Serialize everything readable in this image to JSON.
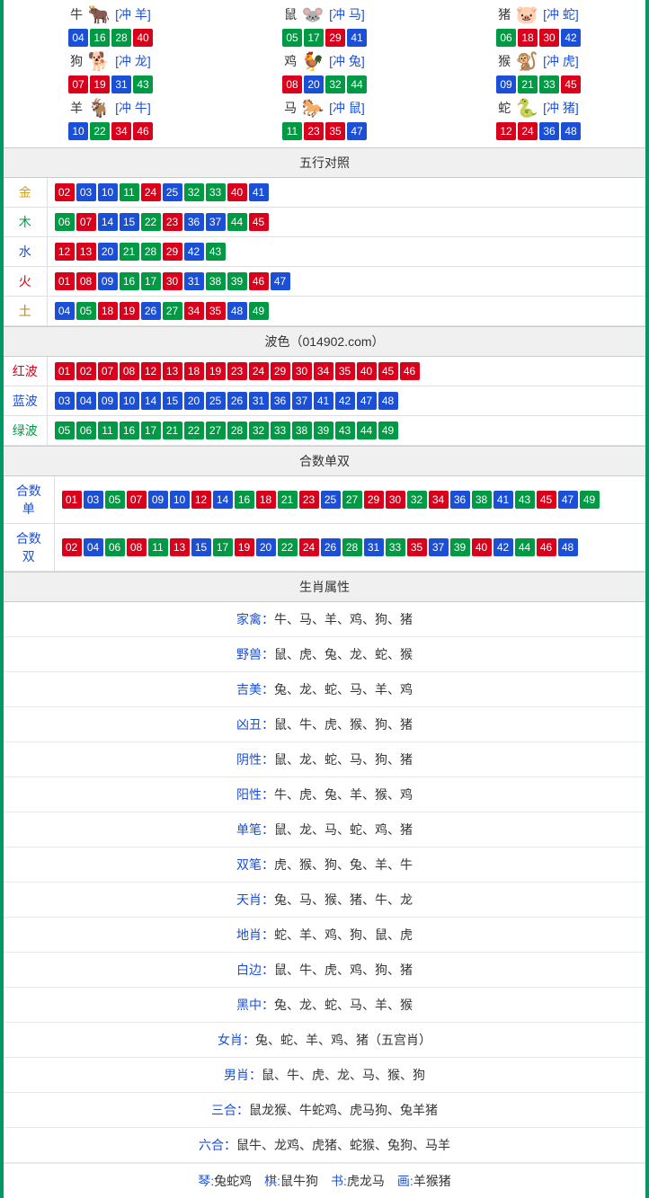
{
  "colors": {
    "border": "#009966",
    "ball_red": "#d9001b",
    "ball_blue": "#1a4fd6",
    "ball_green": "#009944",
    "header_bg": "#f0f0f0",
    "grid_line": "#e0e0e0",
    "text": "#333333",
    "link": "#1a4fd6"
  },
  "ball_color_rule": "red:[01,02,07,08,12,13,18,19,23,24,29,30,34,35,40,45,46], blue:[03,04,09,10,14,15,20,25,26,31,36,37,41,42,47,48], green:[05,06,11,16,17,21,22,27,28,32,33,38,39,43,44,49]",
  "zodiac": [
    {
      "name": "牛",
      "icon": "🐂",
      "icon_color": "#d9534f",
      "bracket": "[冲 羊]",
      "nums": [
        "04",
        "16",
        "28",
        "40"
      ]
    },
    {
      "name": "鼠",
      "icon": "🐭",
      "icon_color": "#5bc0de",
      "bracket": "[冲 马]",
      "nums": [
        "05",
        "17",
        "29",
        "41"
      ]
    },
    {
      "name": "猪",
      "icon": "🐷",
      "icon_color": "#e78fb3",
      "bracket": "[冲 蛇]",
      "nums": [
        "06",
        "18",
        "30",
        "42"
      ]
    },
    {
      "name": "狗",
      "icon": "🐕",
      "icon_color": "#7fb3d5",
      "bracket": "[冲 龙]",
      "nums": [
        "07",
        "19",
        "31",
        "43"
      ]
    },
    {
      "name": "鸡",
      "icon": "🐓",
      "icon_color": "#d4a017",
      "bracket": "[冲 兔]",
      "nums": [
        "08",
        "20",
        "32",
        "44"
      ]
    },
    {
      "name": "猴",
      "icon": "🐒",
      "icon_color": "#c0703a",
      "bracket": "[冲 虎]",
      "nums": [
        "09",
        "21",
        "33",
        "45"
      ]
    },
    {
      "name": "羊",
      "icon": "🐐",
      "icon_color": "#c0a060",
      "bracket": "[冲 牛]",
      "nums": [
        "10",
        "22",
        "34",
        "46"
      ]
    },
    {
      "name": "马",
      "icon": "🐎",
      "icon_color": "#c04030",
      "bracket": "[冲 鼠]",
      "nums": [
        "11",
        "23",
        "35",
        "47"
      ]
    },
    {
      "name": "蛇",
      "icon": "🐍",
      "icon_color": "#3a9a3a",
      "bracket": "[冲 猪]",
      "nums": [
        "12",
        "24",
        "36",
        "48"
      ]
    }
  ],
  "wuxing": {
    "title": "五行对照",
    "rows": [
      {
        "label": "金",
        "cls": "c-gold",
        "nums": [
          "02",
          "03",
          "10",
          "11",
          "24",
          "25",
          "32",
          "33",
          "40",
          "41"
        ]
      },
      {
        "label": "木",
        "cls": "c-wood",
        "nums": [
          "06",
          "07",
          "14",
          "15",
          "22",
          "23",
          "36",
          "37",
          "44",
          "45"
        ]
      },
      {
        "label": "水",
        "cls": "c-water",
        "nums": [
          "12",
          "13",
          "20",
          "21",
          "28",
          "29",
          "42",
          "43"
        ]
      },
      {
        "label": "火",
        "cls": "c-fire",
        "nums": [
          "01",
          "08",
          "09",
          "16",
          "17",
          "30",
          "31",
          "38",
          "39",
          "46",
          "47"
        ]
      },
      {
        "label": "土",
        "cls": "c-earth",
        "nums": [
          "04",
          "05",
          "18",
          "19",
          "26",
          "27",
          "34",
          "35",
          "48",
          "49"
        ]
      }
    ]
  },
  "bose": {
    "title": "波色（014902.com）",
    "rows": [
      {
        "label": "红波",
        "cls": "c-red",
        "nums": [
          "01",
          "02",
          "07",
          "08",
          "12",
          "13",
          "18",
          "19",
          "23",
          "24",
          "29",
          "30",
          "34",
          "35",
          "40",
          "45",
          "46"
        ]
      },
      {
        "label": "蓝波",
        "cls": "c-blue",
        "nums": [
          "03",
          "04",
          "09",
          "10",
          "14",
          "15",
          "20",
          "25",
          "26",
          "31",
          "36",
          "37",
          "41",
          "42",
          "47",
          "48"
        ]
      },
      {
        "label": "绿波",
        "cls": "c-green",
        "nums": [
          "05",
          "06",
          "11",
          "16",
          "17",
          "21",
          "22",
          "27",
          "28",
          "32",
          "33",
          "38",
          "39",
          "43",
          "44",
          "49"
        ]
      }
    ]
  },
  "heshu": {
    "title": "合数单双",
    "rows": [
      {
        "label": "合数单",
        "cls": "c-blue",
        "nums": [
          "01",
          "03",
          "05",
          "07",
          "09",
          "10",
          "12",
          "14",
          "16",
          "18",
          "21",
          "23",
          "25",
          "27",
          "29",
          "30",
          "32",
          "34",
          "36",
          "38",
          "41",
          "43",
          "45",
          "47",
          "49"
        ]
      },
      {
        "label": "合数双",
        "cls": "c-blue",
        "nums": [
          "02",
          "04",
          "06",
          "08",
          "11",
          "13",
          "15",
          "17",
          "19",
          "20",
          "22",
          "24",
          "26",
          "28",
          "31",
          "33",
          "35",
          "37",
          "39",
          "40",
          "42",
          "44",
          "46",
          "48"
        ]
      }
    ]
  },
  "shuxing": {
    "title": "生肖属性",
    "rows": [
      {
        "label": "家禽：",
        "value": "牛、马、羊、鸡、狗、猪"
      },
      {
        "label": "野兽：",
        "value": "鼠、虎、兔、龙、蛇、猴"
      },
      {
        "label": "吉美：",
        "value": "兔、龙、蛇、马、羊、鸡"
      },
      {
        "label": "凶丑：",
        "value": "鼠、牛、虎、猴、狗、猪"
      },
      {
        "label": "阴性：",
        "value": "鼠、龙、蛇、马、狗、猪"
      },
      {
        "label": "阳性：",
        "value": "牛、虎、兔、羊、猴、鸡"
      },
      {
        "label": "单笔：",
        "value": "鼠、龙、马、蛇、鸡、猪"
      },
      {
        "label": "双笔：",
        "value": "虎、猴、狗、兔、羊、牛"
      },
      {
        "label": "天肖：",
        "value": "兔、马、猴、猪、牛、龙"
      },
      {
        "label": "地肖：",
        "value": "蛇、羊、鸡、狗、鼠、虎"
      },
      {
        "label": "白边：",
        "value": "鼠、牛、虎、鸡、狗、猪"
      },
      {
        "label": "黑中：",
        "value": "兔、龙、蛇、马、羊、猴"
      },
      {
        "label": "女肖：",
        "value": "兔、蛇、羊、鸡、猪（五宫肖）"
      },
      {
        "label": "男肖：",
        "value": "鼠、牛、虎、龙、马、猴、狗"
      },
      {
        "label": "三合：",
        "value": "鼠龙猴、牛蛇鸡、虎马狗、兔羊猪"
      },
      {
        "label": "六合：",
        "value": "鼠牛、龙鸡、虎猪、蛇猴、兔狗、马羊"
      }
    ]
  },
  "bottom": [
    {
      "k": "琴:",
      "v": "兔蛇鸡"
    },
    {
      "k": "棋:",
      "v": "鼠牛狗"
    },
    {
      "k": "书:",
      "v": "虎龙马"
    },
    {
      "k": "画:",
      "v": "羊猴猪"
    }
  ]
}
